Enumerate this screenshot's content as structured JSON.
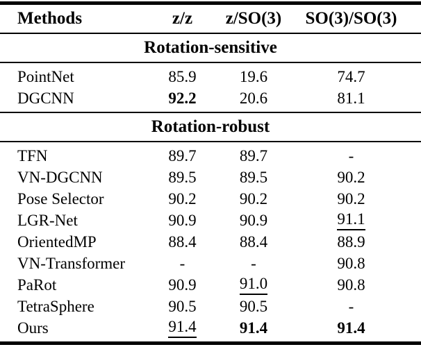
{
  "table": {
    "columns": [
      "Methods",
      "z/z",
      "z/SO(3)",
      "SO(3)/SO(3)"
    ],
    "sections": [
      {
        "title": "Rotation-sensitive",
        "rows": [
          {
            "method": "PointNet",
            "values": [
              {
                "text": "85.9"
              },
              {
                "text": "19.6"
              },
              {
                "text": "74.7"
              }
            ]
          },
          {
            "method": "DGCNN",
            "values": [
              {
                "text": "92.2",
                "bold": true
              },
              {
                "text": "20.6"
              },
              {
                "text": "81.1"
              }
            ]
          }
        ]
      },
      {
        "title": "Rotation-robust",
        "rows": [
          {
            "method": "TFN",
            "values": [
              {
                "text": "89.7"
              },
              {
                "text": "89.7"
              },
              {
                "text": "-"
              }
            ]
          },
          {
            "method": "VN-DGCNN",
            "values": [
              {
                "text": "89.5"
              },
              {
                "text": "89.5"
              },
              {
                "text": "90.2"
              }
            ]
          },
          {
            "method": "Pose Selector",
            "values": [
              {
                "text": "90.2"
              },
              {
                "text": "90.2"
              },
              {
                "text": "90.2"
              }
            ]
          },
          {
            "method": "LGR-Net",
            "values": [
              {
                "text": "90.9"
              },
              {
                "text": "90.9"
              },
              {
                "text": "91.1",
                "underline": true
              }
            ]
          },
          {
            "method": "OrientedMP",
            "values": [
              {
                "text": "88.4"
              },
              {
                "text": "88.4"
              },
              {
                "text": "88.9"
              }
            ]
          },
          {
            "method": "VN-Transformer",
            "values": [
              {
                "text": "-"
              },
              {
                "text": "-"
              },
              {
                "text": "90.8"
              }
            ]
          },
          {
            "method": "PaRot",
            "values": [
              {
                "text": "90.9"
              },
              {
                "text": "91.0",
                "underline": true
              },
              {
                "text": "90.8"
              }
            ]
          },
          {
            "method": "TetraSphere",
            "values": [
              {
                "text": "90.5"
              },
              {
                "text": "90.5"
              },
              {
                "text": "-"
              }
            ]
          },
          {
            "method": "Ours",
            "values": [
              {
                "text": "91.4",
                "underline": true
              },
              {
                "text": "91.4",
                "bold": true
              },
              {
                "text": "91.4",
                "bold": true
              }
            ]
          }
        ]
      }
    ],
    "colors": {
      "text": "#000000",
      "rule": "#000000",
      "background": "#ffffff"
    }
  }
}
